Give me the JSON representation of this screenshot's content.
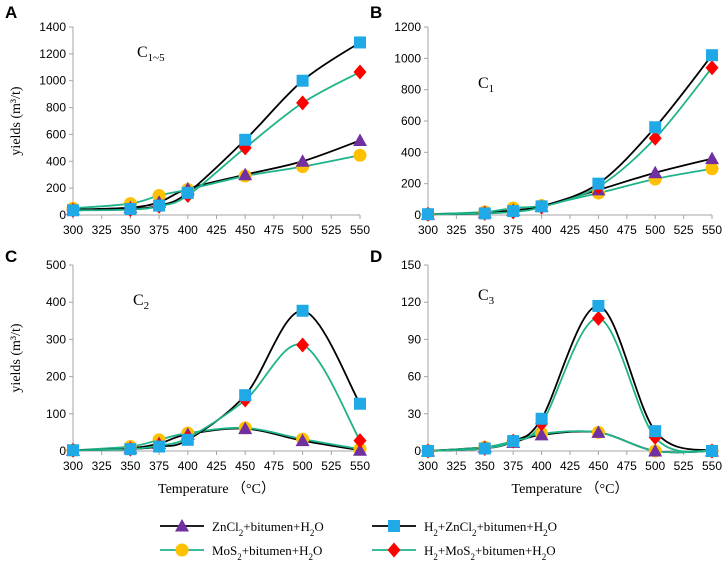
{
  "chart_data": [
    {
      "type": "line",
      "panel": "A",
      "title": "C",
      "title_sub": "1~5",
      "ylabel": "yields (m³/t)",
      "xlabel": "",
      "x": [
        300,
        350,
        375,
        400,
        450,
        500,
        550
      ],
      "xticks": [
        300,
        325,
        350,
        375,
        400,
        425,
        450,
        475,
        500,
        525,
        550
      ],
      "xlim": [
        300,
        550
      ],
      "ylim": [
        0,
        1400
      ],
      "yticks": [
        0,
        200,
        400,
        600,
        800,
        1000,
        1200,
        1400
      ],
      "series": [
        {
          "name": "ZnCl2+bitumen+H2O",
          "values": [
            40,
            55,
            95,
            195,
            300,
            400,
            555
          ]
        },
        {
          "name": "MoS2+bitumen+H2O",
          "values": [
            50,
            85,
            145,
            190,
            290,
            360,
            445
          ]
        },
        {
          "name": "H2+ZnCl2+bitumen+H2O",
          "values": [
            35,
            45,
            70,
            165,
            560,
            1000,
            1285
          ]
        },
        {
          "name": "H2+MoS2+bitumen+H2O",
          "values": [
            35,
            40,
            65,
            145,
            500,
            835,
            1065
          ]
        }
      ]
    },
    {
      "type": "line",
      "panel": "B",
      "title": "C",
      "title_sub": "1",
      "ylabel": "",
      "xlabel": "",
      "x": [
        300,
        350,
        375,
        400,
        450,
        500,
        550
      ],
      "xticks": [
        300,
        325,
        350,
        375,
        400,
        425,
        450,
        475,
        500,
        525,
        550
      ],
      "xlim": [
        300,
        550
      ],
      "ylim": [
        0,
        1200
      ],
      "yticks": [
        0,
        200,
        400,
        600,
        800,
        1000,
        1200
      ],
      "series": [
        {
          "name": "ZnCl2+bitumen+H2O",
          "values": [
            5,
            15,
            30,
            55,
            160,
            270,
            360
          ]
        },
        {
          "name": "MoS2+bitumen+H2O",
          "values": [
            5,
            20,
            45,
            60,
            140,
            230,
            295
          ]
        },
        {
          "name": "H2+ZnCl2+bitumen+H2O",
          "values": [
            5,
            10,
            25,
            55,
            200,
            560,
            1020
          ]
        },
        {
          "name": "H2+MoS2+bitumen+H2O",
          "values": [
            5,
            10,
            20,
            50,
            180,
            490,
            940
          ]
        }
      ]
    },
    {
      "type": "line",
      "panel": "C",
      "title": "C",
      "title_sub": "2",
      "ylabel": "yields (m³/t)",
      "xlabel": "Temperature （°C）",
      "x": [
        300,
        350,
        375,
        400,
        450,
        500,
        550
      ],
      "xticks": [
        300,
        325,
        350,
        375,
        400,
        425,
        450,
        475,
        500,
        525,
        550
      ],
      "xlim": [
        300,
        550
      ],
      "ylim": [
        0,
        500
      ],
      "yticks": [
        0,
        100,
        200,
        300,
        400,
        500
      ],
      "series": [
        {
          "name": "ZnCl2+bitumen+H2O",
          "values": [
            2,
            8,
            20,
            45,
            60,
            28,
            2
          ]
        },
        {
          "name": "MoS2+bitumen+H2O",
          "values": [
            2,
            12,
            30,
            48,
            62,
            32,
            5
          ]
        },
        {
          "name": "H2+ZnCl2+bitumen+H2O",
          "values": [
            2,
            5,
            12,
            30,
            150,
            377,
            127
          ]
        },
        {
          "name": "H2+MoS2+bitumen+H2O",
          "values": [
            2,
            5,
            15,
            35,
            137,
            285,
            28
          ]
        }
      ]
    },
    {
      "type": "line",
      "panel": "D",
      "title": "C",
      "title_sub": "3",
      "ylabel": "",
      "xlabel": "Temperature （°C）",
      "x": [
        300,
        350,
        375,
        400,
        450,
        500,
        550
      ],
      "xticks": [
        300,
        325,
        350,
        375,
        400,
        425,
        450,
        475,
        500,
        525,
        550
      ],
      "xlim": [
        300,
        550
      ],
      "ylim": [
        0,
        150
      ],
      "yticks": [
        0,
        30,
        60,
        90,
        120,
        150
      ],
      "series": [
        {
          "name": "ZnCl2+bitumen+H2O",
          "values": [
            0,
            3,
            7,
            13,
            15,
            0,
            0
          ]
        },
        {
          "name": "MoS2+bitumen+H2O",
          "values": [
            0,
            3,
            8,
            14,
            15,
            0,
            0
          ]
        },
        {
          "name": "H2+ZnCl2+bitumen+H2O",
          "values": [
            0,
            2,
            8,
            26,
            117,
            16,
            0
          ]
        },
        {
          "name": "H2+MoS2+bitumen+H2O",
          "values": [
            0,
            2,
            8,
            22,
            107,
            11,
            0
          ]
        }
      ]
    }
  ],
  "legend": [
    {
      "name": "ZnCl2+bitumen+H2O",
      "parts": [
        [
          "ZnCl",
          ""
        ],
        [
          "2",
          "sub"
        ],
        [
          "+bitumen+H",
          ""
        ],
        [
          "2",
          "sub"
        ],
        [
          "O",
          ""
        ]
      ],
      "line_color": "#000000",
      "marker": "triangle",
      "marker_color": "#7030A0"
    },
    {
      "name": "H2+ZnCl2+bitumen+H2O",
      "parts": [
        [
          "H",
          ""
        ],
        [
          "2",
          "sub"
        ],
        [
          "+ZnCl",
          ""
        ],
        [
          "2",
          "sub"
        ],
        [
          "+bitumen+H",
          ""
        ],
        [
          "2",
          "sub"
        ],
        [
          "O",
          ""
        ]
      ],
      "line_color": "#000000",
      "marker": "square",
      "marker_color": "#1FA9E6"
    },
    {
      "name": "MoS2+bitumen+H2O",
      "parts": [
        [
          "MoS",
          ""
        ],
        [
          "2",
          "sub"
        ],
        [
          "+bitumen+H",
          ""
        ],
        [
          "2",
          "sub"
        ],
        [
          "O",
          ""
        ]
      ],
      "line_color": "#1FB38A",
      "marker": "circle",
      "marker_color": "#FFC000"
    },
    {
      "name": "H2+MoS2+bitumen+H2O",
      "parts": [
        [
          "H",
          ""
        ],
        [
          "2",
          "sub"
        ],
        [
          "+MoS",
          ""
        ],
        [
          "2",
          "sub"
        ],
        [
          "+bitumen+H",
          ""
        ],
        [
          "2",
          "sub"
        ],
        [
          "O",
          ""
        ]
      ],
      "line_color": "#1FB38A",
      "marker": "diamond",
      "marker_color": "#FF0000"
    }
  ],
  "colors": {
    "black_line": "#000000",
    "green_line": "#1FB38A",
    "purple_marker": "#7030A0",
    "blue_marker": "#1FA9E6",
    "yellow_marker": "#FFC000",
    "red_marker": "#FF0000",
    "axis": "#A6A6A6"
  }
}
